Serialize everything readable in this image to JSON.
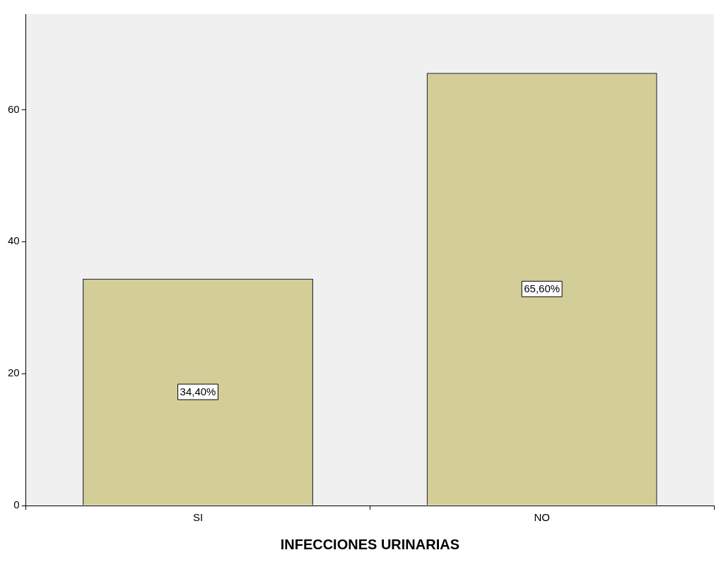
{
  "chart_data": {
    "type": "bar",
    "xlabel": "INFECCIONES URINARIAS",
    "categories": [
      "SI",
      "NO"
    ],
    "values": [
      34.4,
      65.6
    ],
    "value_labels": [
      "34,40%",
      "65,60%"
    ],
    "color": "#d3ce97",
    "ylim": [
      0,
      74.5
    ],
    "yticks": [
      0,
      20,
      40,
      60
    ],
    "legend": false
  }
}
